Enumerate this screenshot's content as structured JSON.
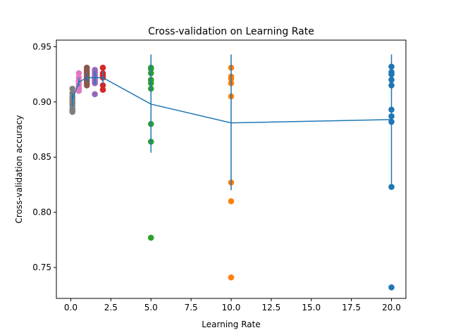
{
  "chart_data": {
    "type": "scatter",
    "title": "Cross-validation on Learning Rate",
    "xlabel": "Learning Rate",
    "ylabel": "Cross-validation accuracy",
    "xlim": [
      -0.9,
      20.9
    ],
    "ylim": [
      0.722,
      0.956
    ],
    "xticks": [
      0.0,
      2.5,
      5.0,
      7.5,
      10.0,
      12.5,
      15.0,
      17.5,
      20.0
    ],
    "xtick_labels": [
      "0.0",
      "2.5",
      "5.0",
      "7.5",
      "10.0",
      "12.5",
      "15.0",
      "17.5",
      "20.0"
    ],
    "yticks": [
      0.75,
      0.8,
      0.85,
      0.9,
      0.95
    ],
    "ytick_labels": [
      "0.75",
      "0.80",
      "0.85",
      "0.90",
      "0.95"
    ],
    "grid": false,
    "colors": {
      "mean_line": "#1f77b4",
      "lr_20": "#1f77b4",
      "lr_10": "#ff7f0e",
      "lr_5": "#2ca02c",
      "lr_2": "#d62728",
      "lr_1_5": "#9467bd",
      "lr_1": "#8c564b",
      "lr_0_5": "#e377c2",
      "lr_0_1": "#7f7f7f"
    },
    "scatter_series": [
      {
        "x": 0.1,
        "color_key": "lr_0_1",
        "y": [
          0.912,
          0.908,
          0.905,
          0.903,
          0.901,
          0.899,
          0.897,
          0.894,
          0.892,
          0.891
        ]
      },
      {
        "x": 0.5,
        "color_key": "lr_0_5",
        "y": [
          0.926,
          0.922,
          0.919,
          0.917,
          0.915,
          0.913,
          0.911,
          0.91
        ]
      },
      {
        "x": 1.0,
        "color_key": "lr_1",
        "y": [
          0.931,
          0.929,
          0.927,
          0.925,
          0.923,
          0.921,
          0.919,
          0.917,
          0.915
        ]
      },
      {
        "x": 1.5,
        "color_key": "lr_1_5",
        "y": [
          0.929,
          0.927,
          0.925,
          0.923,
          0.921,
          0.919,
          0.917,
          0.907
        ]
      },
      {
        "x": 2.0,
        "color_key": "lr_2",
        "y": [
          0.931,
          0.926,
          0.924,
          0.922,
          0.915,
          0.911
        ]
      },
      {
        "x": 5.0,
        "color_key": "lr_5",
        "y": [
          0.931,
          0.93,
          0.926,
          0.92,
          0.917,
          0.912,
          0.88,
          0.864,
          0.777
        ]
      },
      {
        "x": 10.0,
        "color_key": "lr_10",
        "y": [
          0.931,
          0.923,
          0.921,
          0.917,
          0.905,
          0.827,
          0.81,
          0.741
        ]
      },
      {
        "x": 20.0,
        "color_key": "lr_20",
        "y": [
          0.932,
          0.927,
          0.925,
          0.92,
          0.915,
          0.893,
          0.887,
          0.882,
          0.823,
          0.732
        ]
      }
    ],
    "mean_series": {
      "x": [
        0.1,
        0.5,
        1.0,
        1.5,
        2.0,
        5.0,
        10.0,
        20.0
      ],
      "y": [
        0.902,
        0.918,
        0.922,
        0.922,
        0.922,
        0.898,
        0.881,
        0.884
      ],
      "yerr_low": [
        0.896,
        0.914,
        0.918,
        0.916,
        0.916,
        0.854,
        0.82,
        0.825
      ],
      "yerr_high": [
        0.908,
        0.922,
        0.926,
        0.928,
        0.928,
        0.943,
        0.943,
        0.943
      ]
    }
  }
}
